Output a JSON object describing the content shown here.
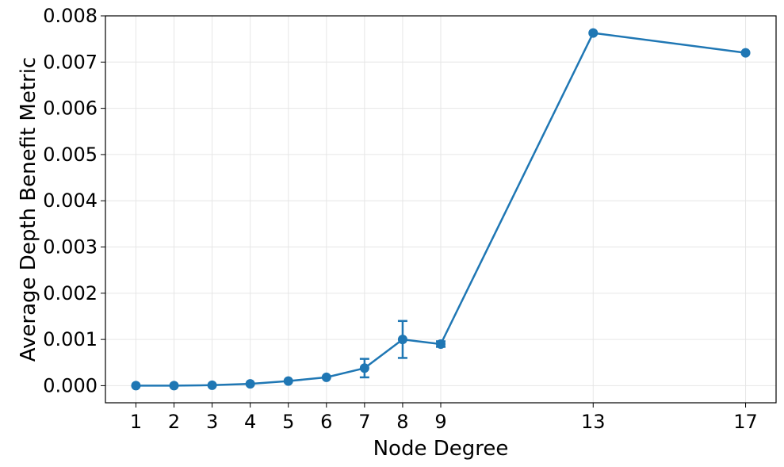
{
  "chart_data": {
    "type": "line",
    "title": "",
    "xlabel": "Node Degree",
    "ylabel": "Average Depth Benefit Metric",
    "xlim": [
      0.2,
      17.8
    ],
    "ylim": [
      -0.00037,
      0.008
    ],
    "grid": true,
    "x_ticks": [
      1,
      2,
      3,
      4,
      5,
      6,
      7,
      8,
      9,
      13,
      17
    ],
    "x_tick_labels": [
      "1",
      "2",
      "3",
      "4",
      "5",
      "6",
      "7",
      "8",
      "9",
      "13",
      "17"
    ],
    "y_ticks": [
      0.0,
      0.001,
      0.002,
      0.003,
      0.004,
      0.005,
      0.006,
      0.007,
      0.008
    ],
    "y_tick_labels": [
      "0.000",
      "0.001",
      "0.002",
      "0.003",
      "0.004",
      "0.005",
      "0.006",
      "0.007",
      "0.008"
    ],
    "series": [
      {
        "color": "#1f77b4",
        "x": [
          1,
          2,
          3,
          4,
          5,
          6,
          7,
          8,
          9,
          13,
          17
        ],
        "y": [
          0.0,
          0.0,
          1e-05,
          4e-05,
          0.0001,
          0.00018,
          0.00038,
          0.001,
          0.0009,
          0.00763,
          0.0072
        ],
        "error": [
          0,
          0,
          0,
          0,
          0,
          0,
          0.0002,
          0.0004,
          6e-05,
          0,
          0
        ]
      }
    ]
  }
}
